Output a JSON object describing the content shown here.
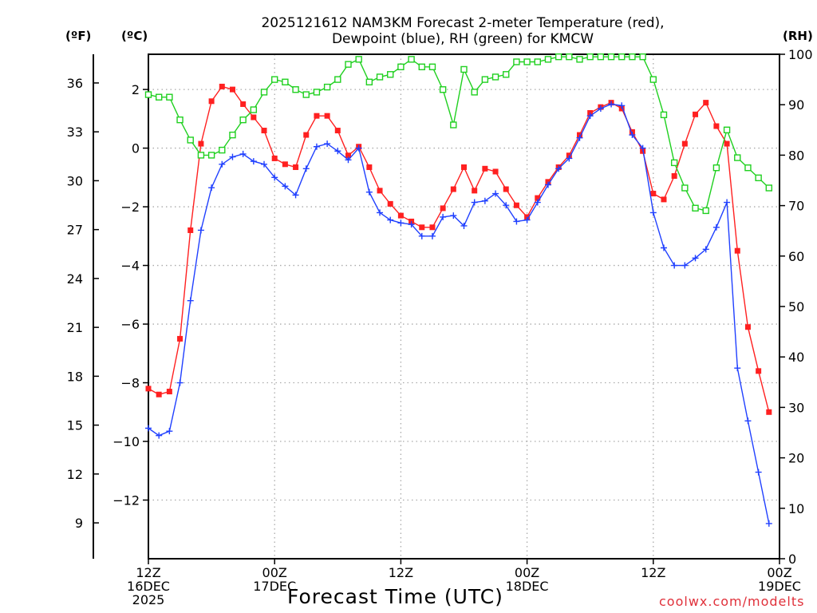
{
  "chart_data": {
    "type": "line",
    "title_line1": "2025121612 NAM3KM Forecast 2-meter Temperature (red),",
    "title_line2": "Dewpoint (blue), RH (green) for KMCW",
    "xlabel": "Forecast Time (UTC)",
    "left_outer_unit": "(ºF)",
    "left_inner_unit": "(ºC)",
    "right_unit": "(RH)",
    "credit": "coolwx.com/modelts",
    "x_range_hours": [
      0,
      60
    ],
    "celsius_range": [
      -14.0,
      3.2
    ],
    "rh_range": [
      0,
      100
    ],
    "fahrenheit_ticks": [
      9,
      12,
      15,
      18,
      21,
      24,
      27,
      30,
      33,
      36
    ],
    "celsius_ticks": [
      -12,
      -10,
      -8,
      -6,
      -4,
      -2,
      0,
      2
    ],
    "rh_ticks": [
      0,
      10,
      20,
      30,
      40,
      50,
      60,
      70,
      80,
      90,
      100
    ],
    "x_ticks": [
      {
        "hour": 0,
        "line1": "12Z",
        "line2": "16DEC",
        "line3": "2025"
      },
      {
        "hour": 12,
        "line1": "00Z",
        "line2": "17DEC",
        "line3": ""
      },
      {
        "hour": 24,
        "line1": "12Z",
        "line2": "",
        "line3": ""
      },
      {
        "hour": 36,
        "line1": "00Z",
        "line2": "18DEC",
        "line3": ""
      },
      {
        "hour": 48,
        "line1": "12Z",
        "line2": "",
        "line3": ""
      },
      {
        "hour": 60,
        "line1": "00Z",
        "line2": "19DEC",
        "line3": ""
      }
    ],
    "series": [
      {
        "name": "Temperature",
        "units": "C",
        "color": "#ff2020",
        "marker": "filled-square",
        "x": [
          0,
          1,
          2,
          3,
          4,
          5,
          6,
          7,
          8,
          9,
          10,
          11,
          12,
          13,
          14,
          15,
          16,
          17,
          18,
          19,
          20,
          21,
          22,
          23,
          24,
          25,
          26,
          27,
          28,
          29,
          30,
          31,
          32,
          33,
          34,
          35,
          36,
          37,
          38,
          39,
          40,
          41,
          42,
          43,
          44,
          45,
          46,
          47,
          48,
          49,
          50,
          51,
          52,
          53,
          54,
          55,
          56,
          57,
          58,
          59,
          60
        ],
        "values": [
          -8.2,
          -8.4,
          -8.3,
          -6.5,
          -2.8,
          0.15,
          1.6,
          2.1,
          2.0,
          1.5,
          1.05,
          0.6,
          -0.35,
          -0.55,
          -0.65,
          0.45,
          1.1,
          1.1,
          0.6,
          -0.25,
          0.05,
          -0.65,
          -1.45,
          -1.9,
          -2.3,
          -2.5,
          -2.7,
          -2.7,
          -2.05,
          -1.4,
          -0.65,
          -1.45,
          -0.7,
          -0.8,
          -1.4,
          -1.95,
          -2.35,
          -1.7,
          -1.15,
          -0.65,
          -0.25,
          0.45,
          1.2,
          1.4,
          1.55,
          1.35,
          0.55,
          -0.1,
          -1.55,
          -1.75,
          -0.95,
          0.15,
          1.15,
          1.55,
          0.75,
          0.15,
          -3.5,
          -6.1,
          -7.6,
          -9.0,
          null
        ]
      },
      {
        "name": "Dewpoint",
        "units": "C",
        "color": "#2040ff",
        "marker": "plus",
        "x": [
          0,
          1,
          2,
          3,
          4,
          5,
          6,
          7,
          8,
          9,
          10,
          11,
          12,
          13,
          14,
          15,
          16,
          17,
          18,
          19,
          20,
          21,
          22,
          23,
          24,
          25,
          26,
          27,
          28,
          29,
          30,
          31,
          32,
          33,
          34,
          35,
          36,
          37,
          38,
          39,
          40,
          41,
          42,
          43,
          44,
          45,
          46,
          47,
          48,
          49,
          50,
          51,
          52,
          53,
          54,
          55,
          56,
          57,
          58,
          59,
          60
        ],
        "values": [
          -9.55,
          -9.8,
          -9.65,
          -8.0,
          -5.2,
          -2.8,
          -1.35,
          -0.55,
          -0.3,
          -0.2,
          -0.45,
          -0.55,
          -1.0,
          -1.3,
          -1.6,
          -0.7,
          0.05,
          0.15,
          -0.1,
          -0.4,
          0.0,
          -1.5,
          -2.2,
          -2.45,
          -2.55,
          -2.6,
          -3.0,
          -3.0,
          -2.35,
          -2.3,
          -2.65,
          -1.85,
          -1.8,
          -1.55,
          -1.95,
          -2.5,
          -2.45,
          -1.85,
          -1.25,
          -0.7,
          -0.35,
          0.35,
          1.1,
          1.35,
          1.5,
          1.45,
          0.45,
          0.0,
          -2.2,
          -3.4,
          -4.0,
          -4.0,
          -3.75,
          -3.45,
          -2.7,
          -1.85,
          -7.5,
          -9.3,
          -11.05,
          -12.8,
          null
        ]
      },
      {
        "name": "RH",
        "units": "%",
        "color": "#20d020",
        "marker": "open-square",
        "x": [
          0,
          1,
          2,
          3,
          4,
          5,
          6,
          7,
          8,
          9,
          10,
          11,
          12,
          13,
          14,
          15,
          16,
          17,
          18,
          19,
          20,
          21,
          22,
          23,
          24,
          25,
          26,
          27,
          28,
          29,
          30,
          31,
          32,
          33,
          34,
          35,
          36,
          37,
          38,
          39,
          40,
          41,
          42,
          43,
          44,
          45,
          46,
          47,
          48,
          49,
          50,
          51,
          52,
          53,
          54,
          55,
          56,
          57,
          58,
          59,
          60
        ],
        "values": [
          92,
          91.5,
          91.5,
          87,
          83,
          80,
          80,
          81,
          84,
          87,
          89,
          92.5,
          95,
          94.5,
          93,
          92,
          92.5,
          93.5,
          95,
          98,
          99,
          94.5,
          95.5,
          96,
          97.5,
          99,
          97.5,
          97.5,
          93,
          86,
          97,
          92.5,
          95,
          95.5,
          96,
          98.5,
          98.5,
          98.5,
          99,
          99.5,
          99.5,
          99,
          99.5,
          99.5,
          99.5,
          99.5,
          99.5,
          99.5,
          95,
          88,
          78.5,
          73.5,
          69.5,
          69,
          77.5,
          85,
          79.5,
          77.5,
          75.5,
          73.5,
          null
        ]
      }
    ]
  }
}
